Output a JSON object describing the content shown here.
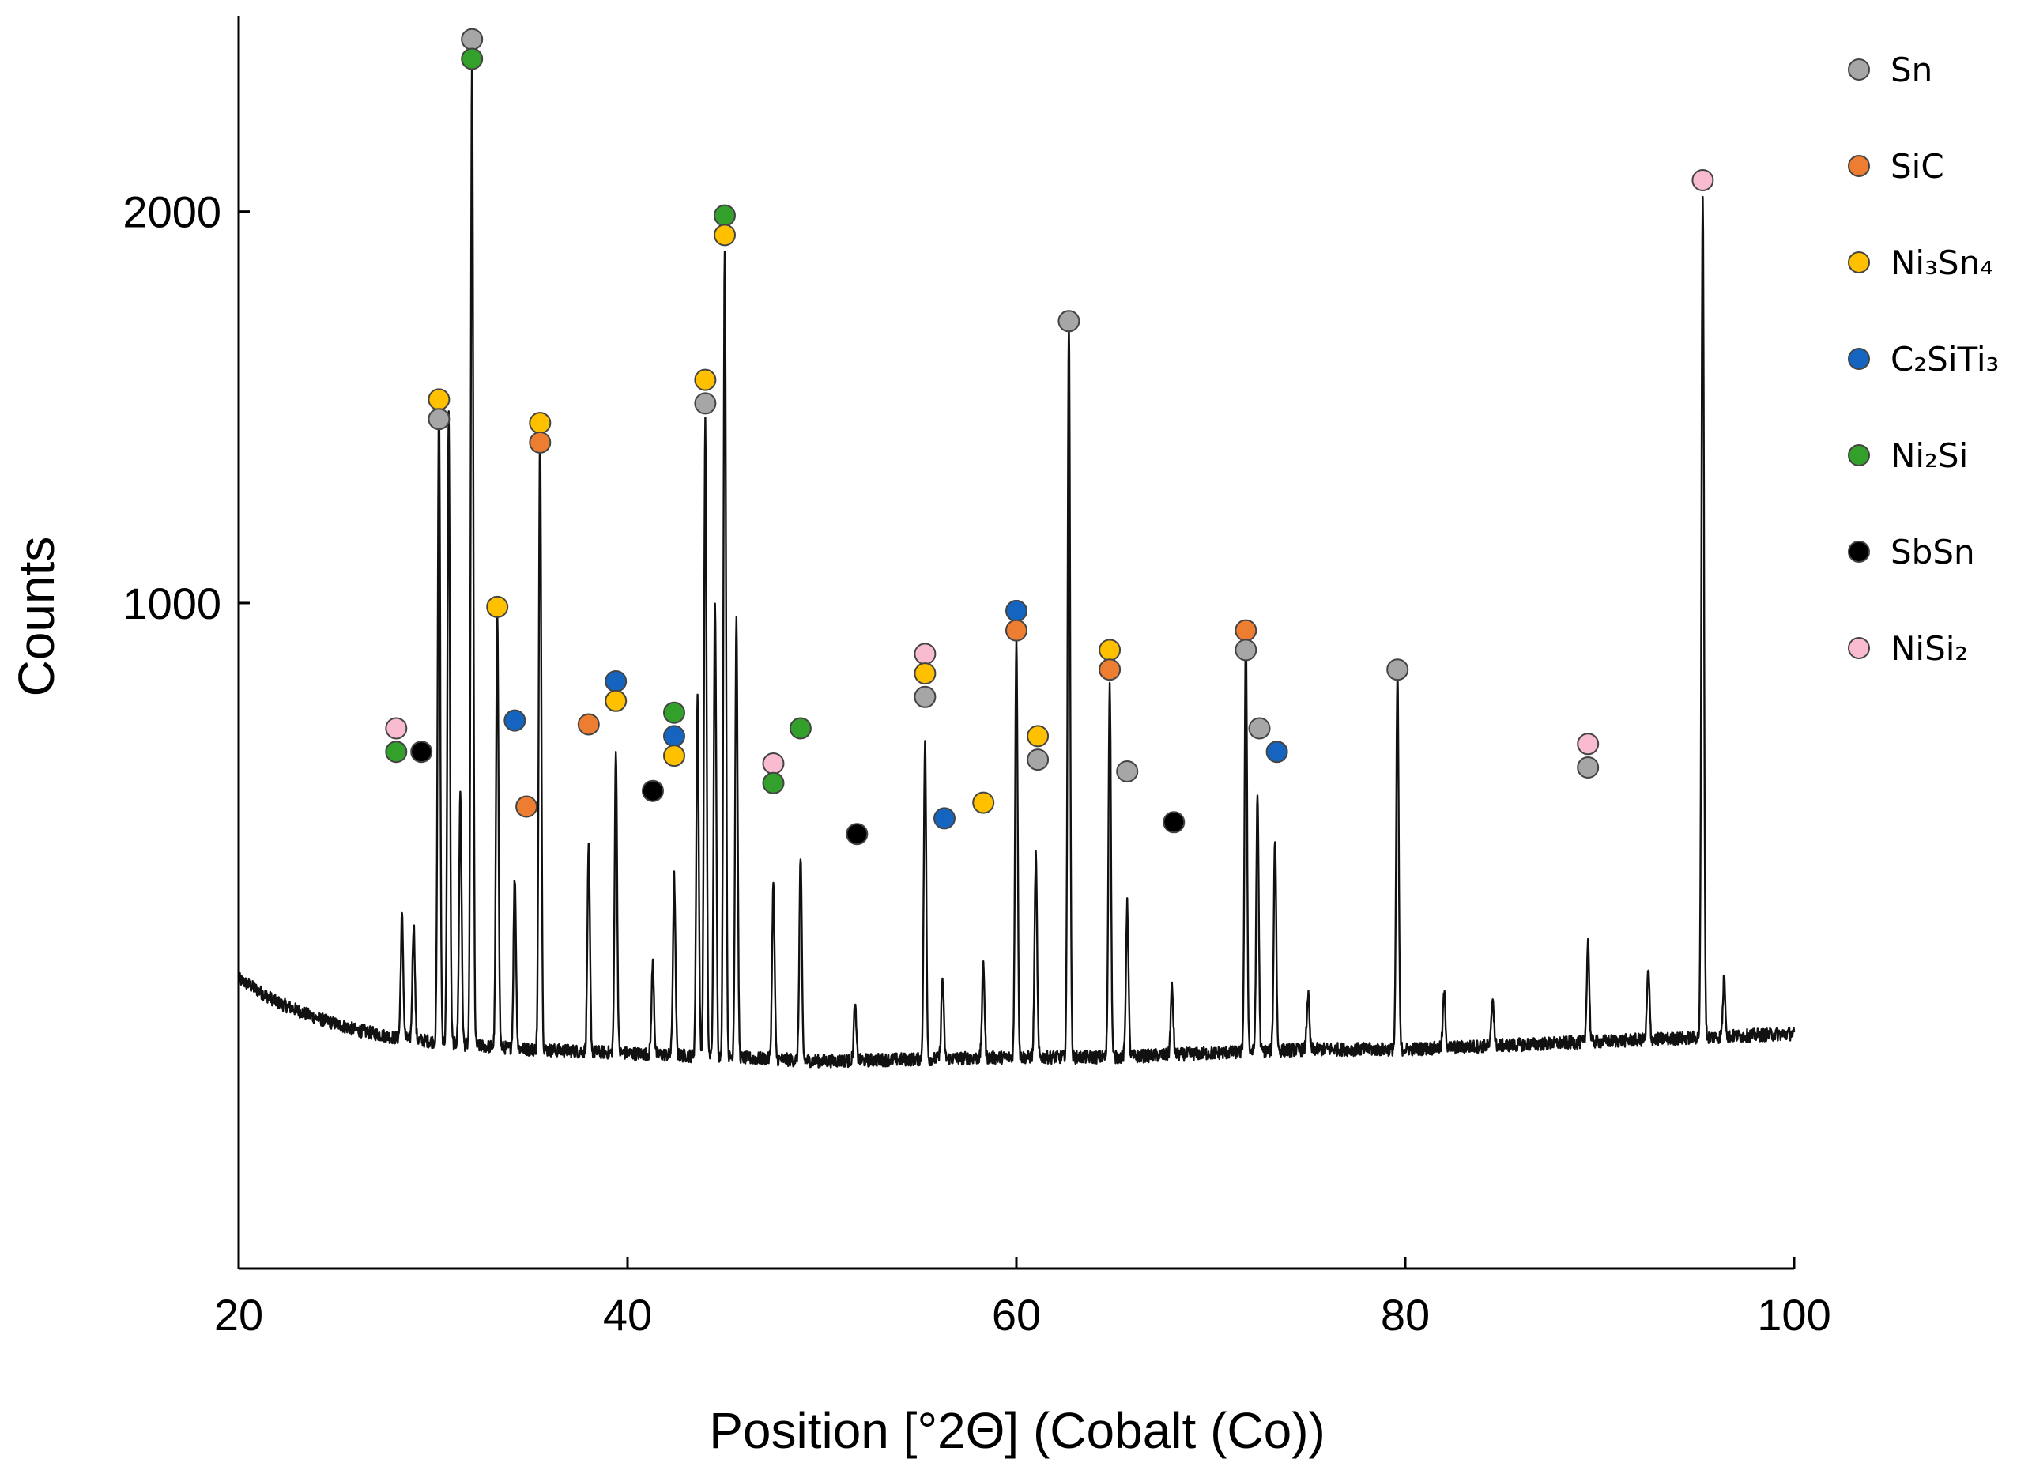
{
  "chart_data": {
    "type": "line",
    "title": "",
    "xlabel": "Position [°2Θ] (Cobalt (Co))",
    "ylabel": "Counts",
    "xlim": [
      20,
      100
    ],
    "ylim": [
      -700,
      2500
    ],
    "xticks": [
      20,
      40,
      60,
      80,
      100
    ],
    "yticks": [
      1000,
      2000
    ],
    "grid": false,
    "legend_position": "top-right",
    "legend": [
      {
        "label": "Sn",
        "color": "#a6a6a6"
      },
      {
        "label": "SiC",
        "color": "#ed7d31"
      },
      {
        "label": "Ni₃Sn₄",
        "color": "#ffc000"
      },
      {
        "label": "C₂SiTi₃",
        "color": "#1565c0"
      },
      {
        "label": "Ni₂Si",
        "color": "#33a02c"
      },
      {
        "label": "SbSn",
        "color": "#000000"
      },
      {
        "label": "NiSi₂",
        "color": "#f8bbd0"
      }
    ],
    "background": [
      [
        20,
        40
      ],
      [
        21,
        10
      ],
      [
        22,
        -20
      ],
      [
        24,
        -60
      ],
      [
        26,
        -90
      ],
      [
        28,
        -110
      ],
      [
        30,
        -120
      ],
      [
        32,
        -130
      ],
      [
        35,
        -140
      ],
      [
        40,
        -150
      ],
      [
        45,
        -160
      ],
      [
        50,
        -170
      ],
      [
        55,
        -165
      ],
      [
        60,
        -160
      ],
      [
        65,
        -160
      ],
      [
        70,
        -150
      ],
      [
        75,
        -140
      ],
      [
        80,
        -140
      ],
      [
        85,
        -130
      ],
      [
        90,
        -120
      ],
      [
        95,
        -110
      ],
      [
        100,
        -100
      ]
    ],
    "peaks": [
      {
        "x": 28.4,
        "y": 200
      },
      {
        "x": 29.0,
        "y": 180
      },
      {
        "x": 30.3,
        "y": 1520
      },
      {
        "x": 30.8,
        "y": 1480
      },
      {
        "x": 31.4,
        "y": 520
      },
      {
        "x": 32.0,
        "y": 2380
      },
      {
        "x": 33.3,
        "y": 960
      },
      {
        "x": 34.2,
        "y": 300
      },
      {
        "x": 35.5,
        "y": 1440
      },
      {
        "x": 38.0,
        "y": 370
      },
      {
        "x": 39.4,
        "y": 630
      },
      {
        "x": 41.3,
        "y": 80
      },
      {
        "x": 42.4,
        "y": 300
      },
      {
        "x": 43.6,
        "y": 760
      },
      {
        "x": 44.0,
        "y": 1470
      },
      {
        "x": 44.5,
        "y": 1010
      },
      {
        "x": 45.0,
        "y": 1910
      },
      {
        "x": 45.6,
        "y": 960
      },
      {
        "x": 47.5,
        "y": 280
      },
      {
        "x": 48.9,
        "y": 350
      },
      {
        "x": 51.7,
        "y": -30
      },
      {
        "x": 55.3,
        "y": 640
      },
      {
        "x": 56.2,
        "y": 40
      },
      {
        "x": 58.3,
        "y": 80
      },
      {
        "x": 60.0,
        "y": 910
      },
      {
        "x": 61.0,
        "y": 350
      },
      {
        "x": 62.7,
        "y": 1720
      },
      {
        "x": 64.8,
        "y": 800
      },
      {
        "x": 65.7,
        "y": 230
      },
      {
        "x": 68.0,
        "y": 20
      },
      {
        "x": 71.8,
        "y": 920
      },
      {
        "x": 72.4,
        "y": 510
      },
      {
        "x": 73.3,
        "y": 400
      },
      {
        "x": 75.0,
        "y": 0
      },
      {
        "x": 79.6,
        "y": 820
      },
      {
        "x": 82.0,
        "y": 0
      },
      {
        "x": 84.5,
        "y": -10
      },
      {
        "x": 89.4,
        "y": 140
      },
      {
        "x": 92.5,
        "y": 60
      },
      {
        "x": 95.3,
        "y": 2050
      },
      {
        "x": 96.4,
        "y": 40
      }
    ],
    "markers": [
      {
        "phase": "Sn",
        "x": 32.0,
        "y": 2440
      },
      {
        "phase": "Ni₂Si",
        "x": 32.0,
        "y": 2390
      },
      {
        "phase": "Ni₂Si",
        "x": 45.0,
        "y": 1990
      },
      {
        "phase": "Ni₃Sn₄",
        "x": 45.0,
        "y": 1940
      },
      {
        "phase": "NiSi₂",
        "x": 95.3,
        "y": 2080
      },
      {
        "phase": "Sn",
        "x": 62.7,
        "y": 1720
      },
      {
        "phase": "Ni₃Sn₄",
        "x": 44.0,
        "y": 1570
      },
      {
        "phase": "Sn",
        "x": 44.0,
        "y": 1510
      },
      {
        "phase": "Ni₃Sn₄",
        "x": 30.3,
        "y": 1520
      },
      {
        "phase": "Sn",
        "x": 30.3,
        "y": 1470
      },
      {
        "phase": "Ni₃Sn₄",
        "x": 35.5,
        "y": 1460
      },
      {
        "phase": "SiC",
        "x": 35.5,
        "y": 1410
      },
      {
        "phase": "Ni₃Sn₄",
        "x": 33.3,
        "y": 990
      },
      {
        "phase": "C₂SiTi₃",
        "x": 60.0,
        "y": 980
      },
      {
        "phase": "SiC",
        "x": 60.0,
        "y": 930
      },
      {
        "phase": "SiC",
        "x": 71.8,
        "y": 930
      },
      {
        "phase": "Sn",
        "x": 71.8,
        "y": 880
      },
      {
        "phase": "NiSi₂",
        "x": 55.3,
        "y": 870
      },
      {
        "phase": "Ni₃Sn₄",
        "x": 55.3,
        "y": 820
      },
      {
        "phase": "Sn",
        "x": 55.3,
        "y": 760
      },
      {
        "phase": "Ni₃Sn₄",
        "x": 64.8,
        "y": 880
      },
      {
        "phase": "SiC",
        "x": 64.8,
        "y": 830
      },
      {
        "phase": "Sn",
        "x": 79.6,
        "y": 830
      },
      {
        "phase": "C₂SiTi₃",
        "x": 39.4,
        "y": 800
      },
      {
        "phase": "Ni₃Sn₄",
        "x": 39.4,
        "y": 750
      },
      {
        "phase": "Ni₂Si",
        "x": 42.4,
        "y": 720
      },
      {
        "phase": "C₂SiTi₃",
        "x": 42.4,
        "y": 660
      },
      {
        "phase": "Ni₃Sn₄",
        "x": 42.4,
        "y": 610
      },
      {
        "phase": "C₂SiTi₃",
        "x": 34.2,
        "y": 700
      },
      {
        "phase": "SiC",
        "x": 38.0,
        "y": 690
      },
      {
        "phase": "Ni₂Si",
        "x": 48.9,
        "y": 680
      },
      {
        "phase": "NiSi₂",
        "x": 28.1,
        "y": 680
      },
      {
        "phase": "Ni₂Si",
        "x": 28.1,
        "y": 620
      },
      {
        "phase": "SbSn",
        "x": 29.4,
        "y": 620
      },
      {
        "phase": "Sn",
        "x": 72.5,
        "y": 680
      },
      {
        "phase": "C₂SiTi₃",
        "x": 73.4,
        "y": 620
      },
      {
        "phase": "Ni₃Sn₄",
        "x": 61.1,
        "y": 660
      },
      {
        "phase": "Sn",
        "x": 61.1,
        "y": 600
      },
      {
        "phase": "NiSi₂",
        "x": 89.4,
        "y": 640
      },
      {
        "phase": "Sn",
        "x": 89.4,
        "y": 580
      },
      {
        "phase": "NiSi₂",
        "x": 47.5,
        "y": 590
      },
      {
        "phase": "Ni₂Si",
        "x": 47.5,
        "y": 540
      },
      {
        "phase": "Sn",
        "x": 65.7,
        "y": 570
      },
      {
        "phase": "SbSn",
        "x": 41.3,
        "y": 520
      },
      {
        "phase": "Ni₃Sn₄",
        "x": 58.3,
        "y": 490
      },
      {
        "phase": "SiC",
        "x": 34.8,
        "y": 480
      },
      {
        "phase": "C₂SiTi₃",
        "x": 56.3,
        "y": 450
      },
      {
        "phase": "SbSn",
        "x": 68.1,
        "y": 440
      },
      {
        "phase": "SbSn",
        "x": 51.8,
        "y": 410
      }
    ]
  }
}
